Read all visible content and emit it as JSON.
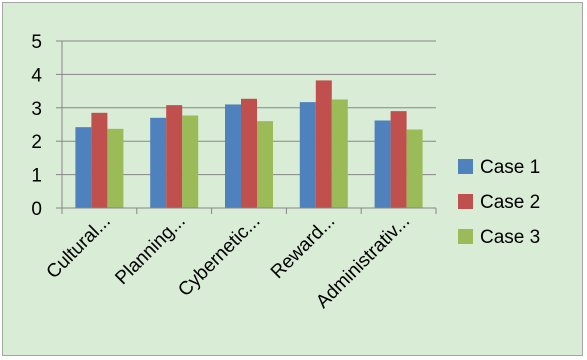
{
  "chart_data": {
    "type": "bar",
    "title": "",
    "xlabel": "",
    "ylabel": "",
    "categories": [
      "Cultural...",
      "Planning...",
      "Cybernetic...",
      "Reward...",
      "Administrativ..."
    ],
    "series": [
      {
        "name": "Case 1",
        "color": "#4f81bd",
        "values": [
          2.42,
          2.7,
          3.1,
          3.17,
          2.62
        ]
      },
      {
        "name": "Case 2",
        "color": "#c0504d",
        "values": [
          2.85,
          3.08,
          3.27,
          3.82,
          2.9
        ]
      },
      {
        "name": "Case 3",
        "color": "#9bbb59",
        "values": [
          2.37,
          2.77,
          2.6,
          3.25,
          2.35
        ]
      }
    ],
    "ylim": [
      0,
      5
    ],
    "yticks": [
      "0",
      "1",
      "2",
      "3",
      "4",
      "5"
    ],
    "grid": true,
    "legend_position": "right"
  }
}
